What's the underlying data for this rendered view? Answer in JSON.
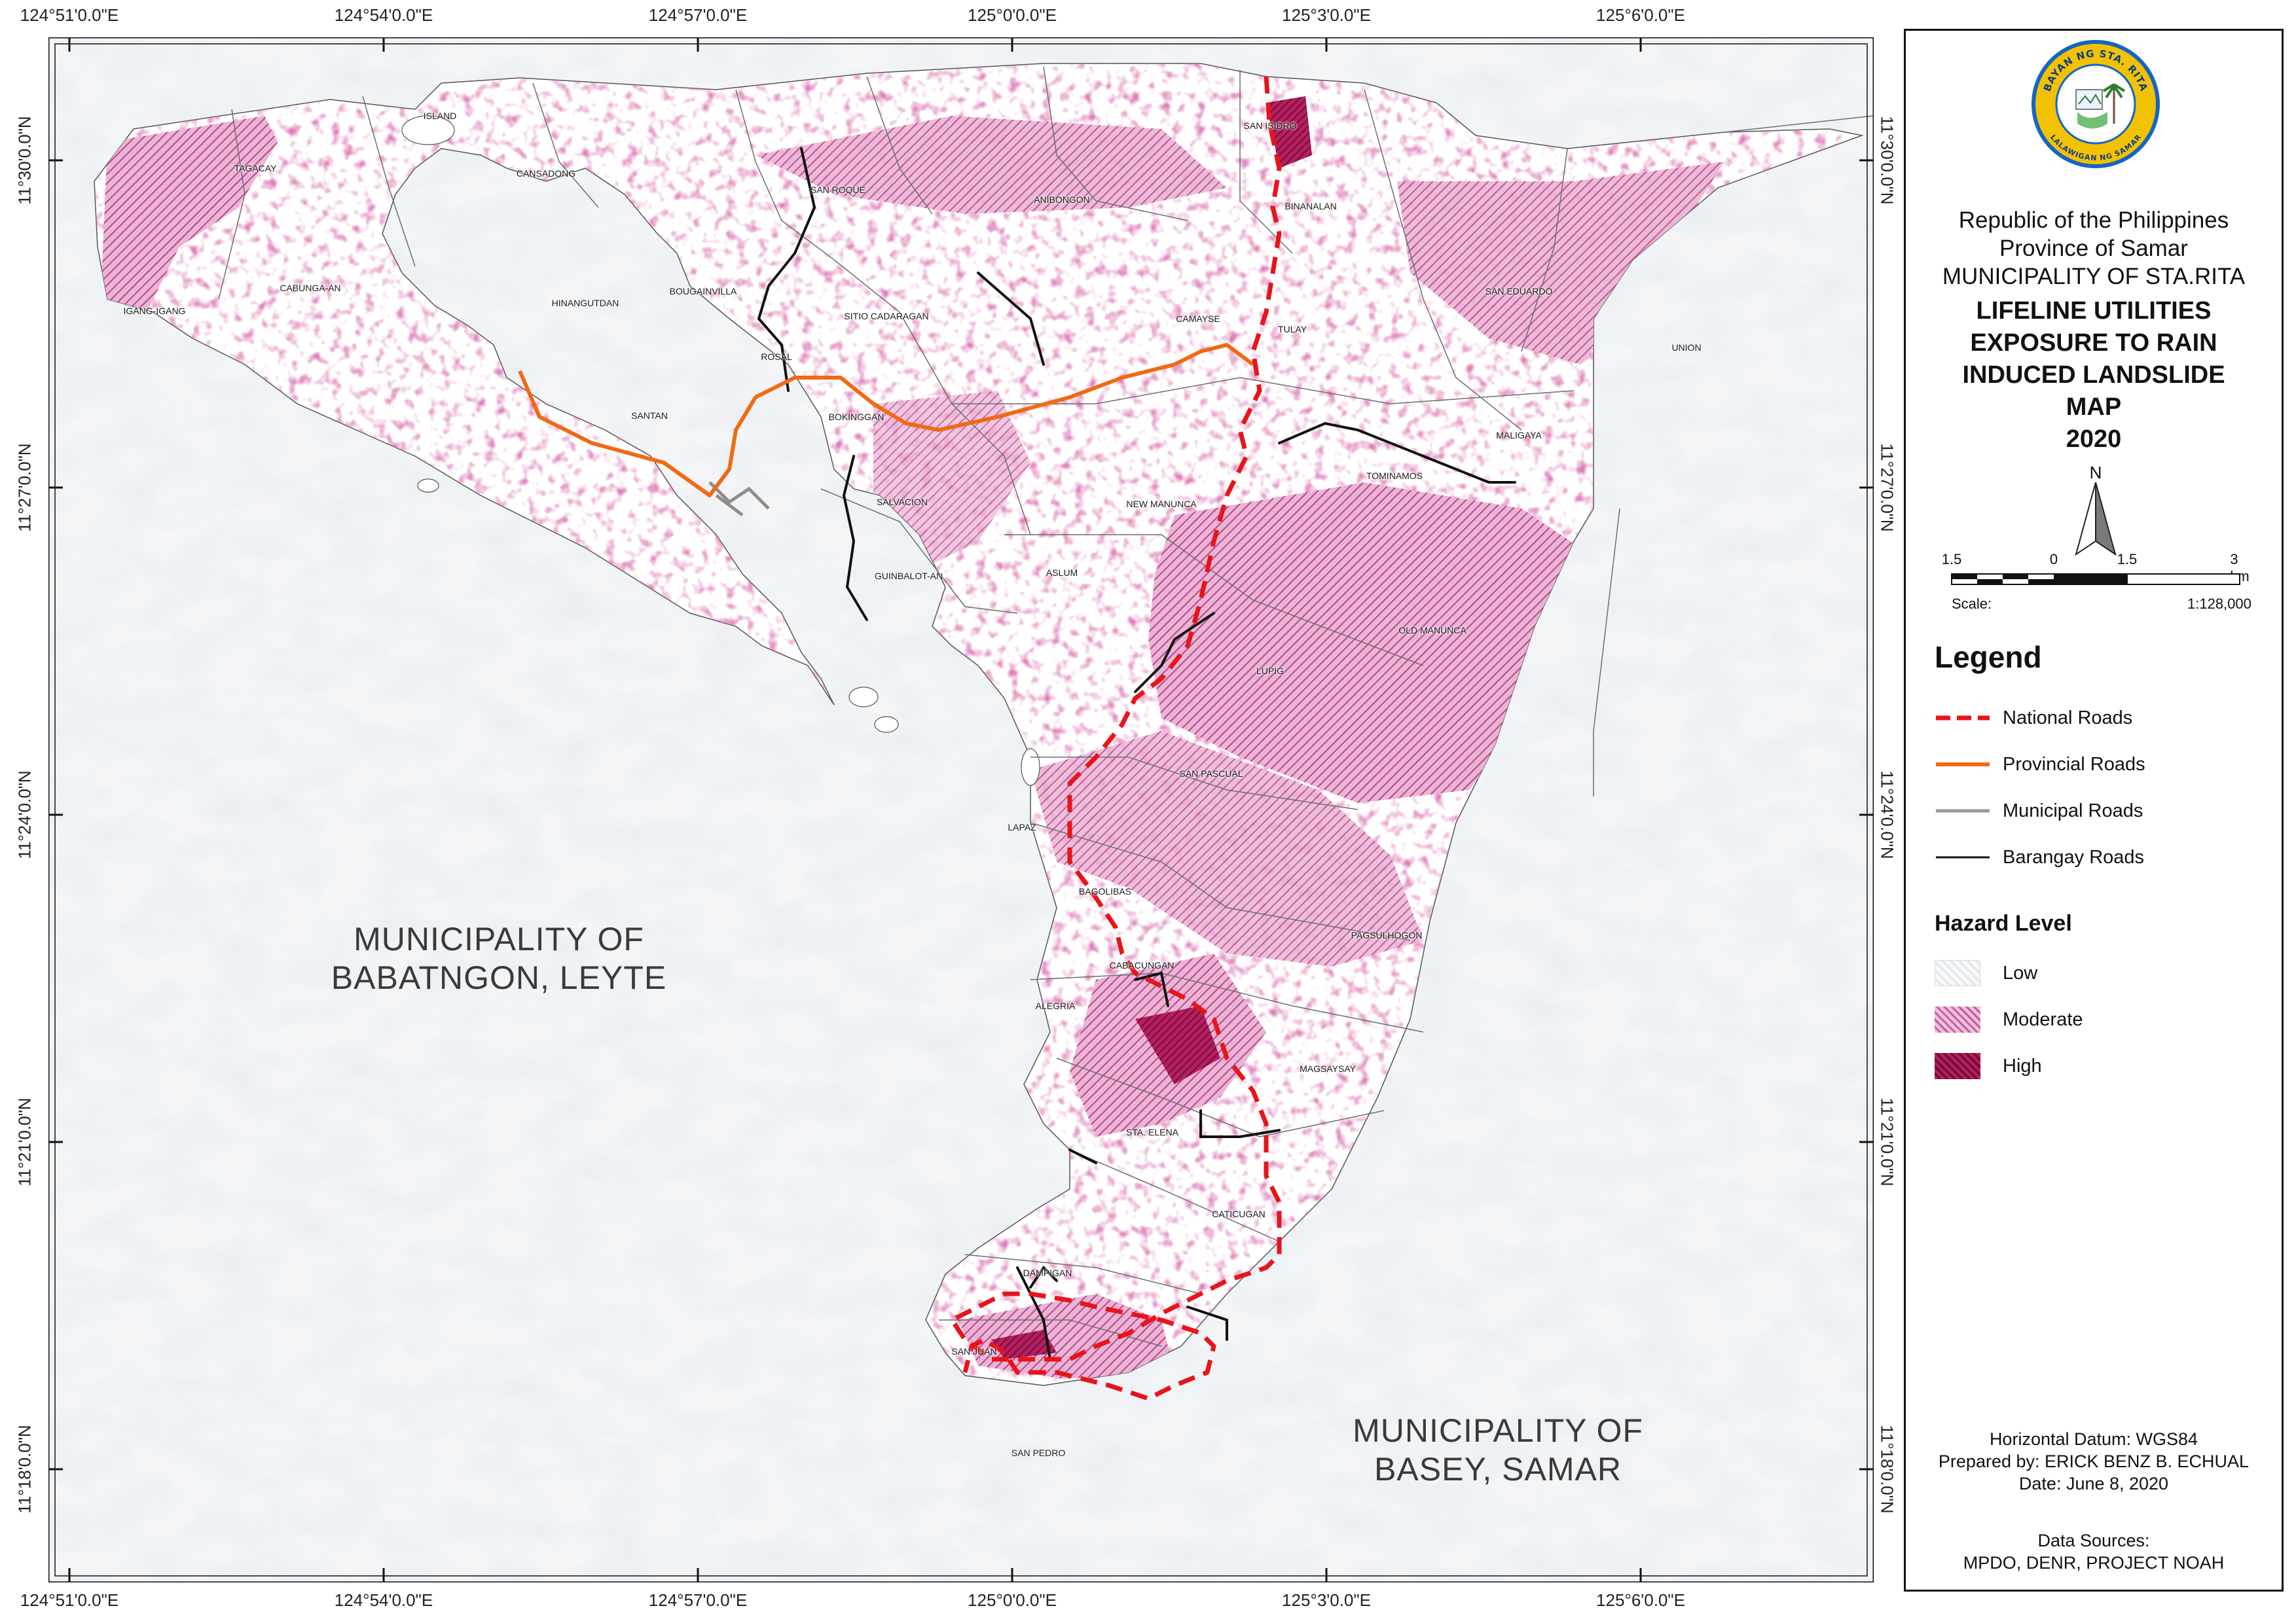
{
  "coordinates": {
    "top": [
      "124°51'0.0\"E",
      "124°54'0.0\"E",
      "124°57'0.0\"E",
      "125°0'0.0\"E",
      "125°3'0.0\"E",
      "125°6'0.0\"E"
    ],
    "bottom": [
      "124°51'0.0\"E",
      "124°54'0.0\"E",
      "124°57'0.0\"E",
      "125°0'0.0\"E",
      "125°3'0.0\"E",
      "125°6'0.0\"E"
    ],
    "left": [
      "11°30'0.0\"N",
      "11°27'0.0\"N",
      "11°24'0.0\"N",
      "11°21'0.0\"N",
      "11°18'0.0\"N"
    ],
    "right": [
      "11°30'0.0\"N",
      "11°27'0.0\"N",
      "11°24'0.0\"N",
      "11°21'0.0\"N",
      "11°18'0.0\"N"
    ]
  },
  "map": {
    "barangays": [
      "ISLAND",
      "CANSADONG",
      "TAGACAY",
      "CABUNGA-AN",
      "IGANG-IGANG",
      "HINANGUTDAN",
      "BOUGAINVILLA",
      "SAN ROQUE",
      "SITIO CADARAGAN",
      "ANIBONGON",
      "SAN ISIDRO",
      "BINANALAN",
      "CAMAYSE",
      "TULAY",
      "SAN EDUARDO",
      "UNION",
      "MALIGAYA",
      "TOMINAMOS",
      "ROSAL",
      "SANTAN",
      "BOKINGGAN",
      "SALVACION",
      "NEW MANUNCA",
      "GUINBALOT-AN",
      "ASLUM",
      "OLD MANUNCA",
      "LUPIG",
      "SAN PASCUAL",
      "LAPAZ",
      "BAGOLIBAS",
      "PAGSULHOGON",
      "CABACUNGAN",
      "ALEGRIA",
      "MAGSAYSAY",
      "STA. ELENA",
      "CATICUGAN",
      "DAMPIGAN",
      "SAN JUAN",
      "SAN PEDRO"
    ],
    "neighbors": {
      "babatngon": [
        "MUNICIPALITY OF",
        "BABATNGON, LEYTE"
      ],
      "basey": [
        "MUNICIPALITY OF",
        "BASEY, SAMAR"
      ]
    }
  },
  "panel": {
    "seal": {
      "top_text": "BAYAN NG STA. RITA",
      "bottom_text": "LALAWIGAN NG SAMAR"
    },
    "header": [
      "Republic of the Philippines",
      "Province of Samar",
      "MUNICIPALITY OF STA.RITA"
    ],
    "title": [
      "LIFELINE UTILITIES",
      "EXPOSURE TO RAIN",
      "INDUCED LANDSLIDE",
      "MAP",
      "2020"
    ],
    "north_label": "N",
    "scale": {
      "ticks": [
        "1.5",
        "0",
        "1.5",
        "3 km"
      ],
      "label": "Scale:",
      "ratio": "1:128,000"
    },
    "legend": {
      "title": "Legend",
      "roads": [
        {
          "label": "National Roads",
          "color": "#e8141b",
          "dash": true
        },
        {
          "label": "Provincial Roads",
          "color": "#f06a14",
          "dash": false
        },
        {
          "label": "Municipal Roads",
          "color": "#9a9a9a",
          "dash": false
        },
        {
          "label": "Barangay Roads",
          "color": "#111111",
          "dash": false
        }
      ],
      "hazard_title": "Hazard Level",
      "hazard": [
        {
          "label": "Low",
          "color": "#eef0f2"
        },
        {
          "label": "Moderate",
          "color": "#d57fb6"
        },
        {
          "label": "High",
          "color": "#9b0f4d"
        }
      ]
    },
    "credits": [
      "Horizontal Datum: WGS84",
      "Prepared by: ERICK BENZ B. ECHUAL",
      "Date: June 8, 2020"
    ],
    "sources": [
      "Data Sources:",
      "MPDO, DENR, PROJECT NOAH"
    ]
  }
}
